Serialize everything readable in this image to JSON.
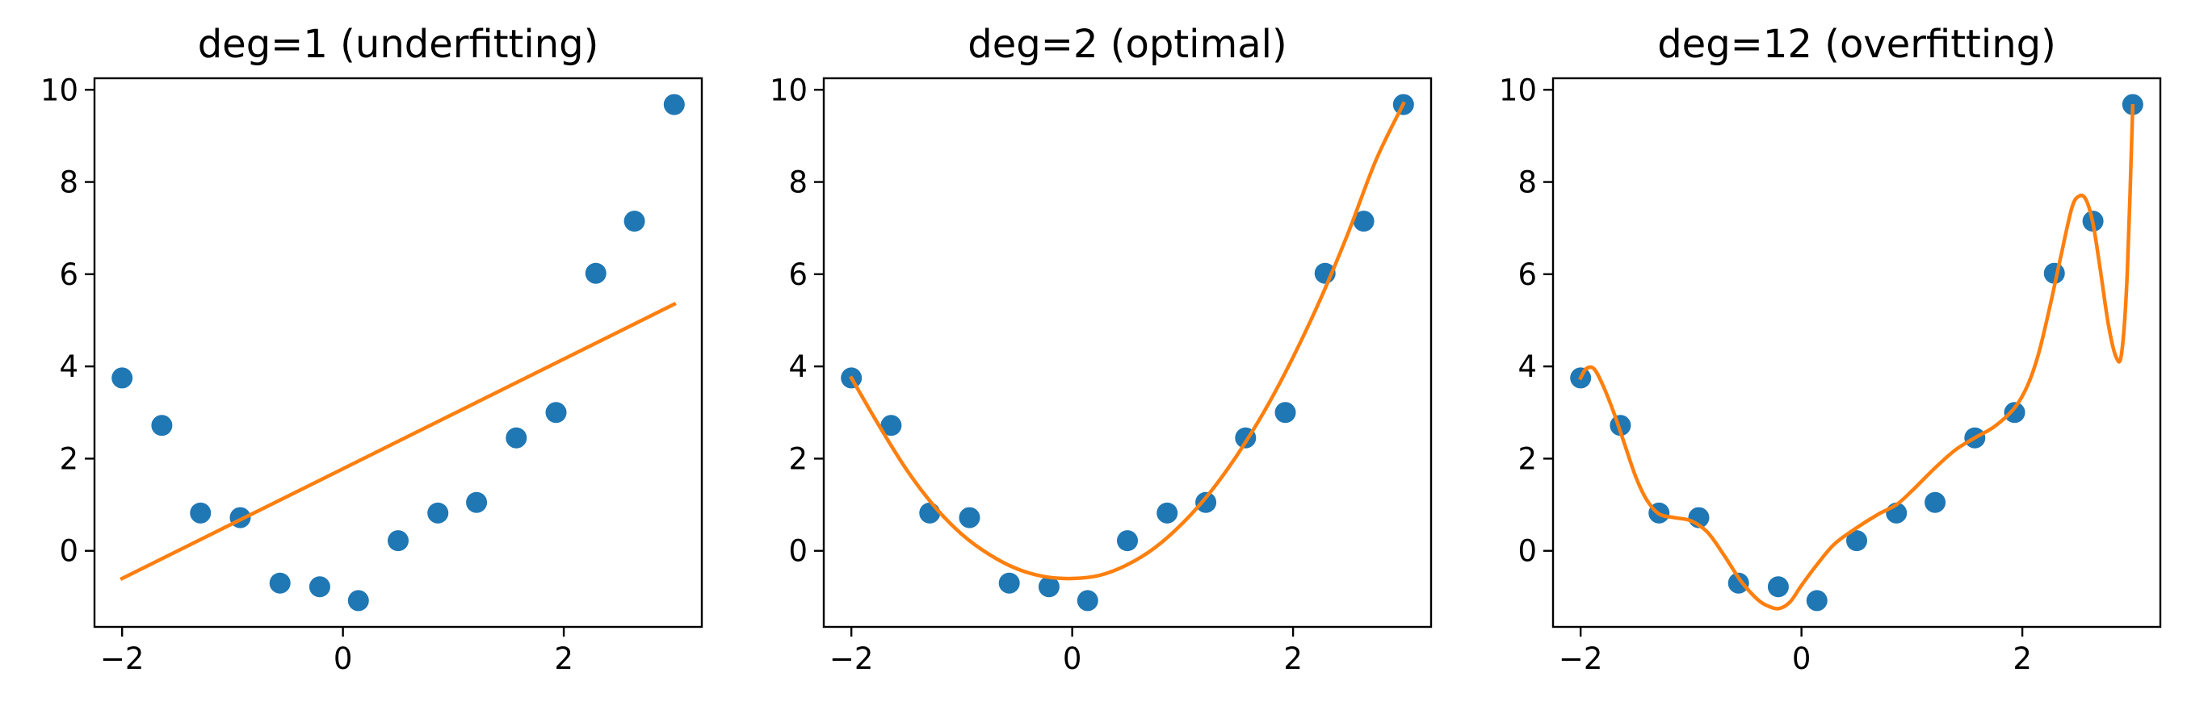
{
  "chart_data": [
    {
      "type": "scatter",
      "title": "deg=1 (underfitting)",
      "xlabel": "",
      "ylabel": "",
      "xlim": [
        -2.25,
        3.25
      ],
      "ylim": [
        -1.65,
        10.25
      ],
      "xticks": [
        -2,
        0,
        2
      ],
      "xtick_labels": [
        "−2",
        "0",
        "2"
      ],
      "yticks": [
        0,
        2,
        4,
        6,
        8,
        10
      ],
      "ytick_labels": [
        "0",
        "2",
        "4",
        "6",
        "8",
        "10"
      ],
      "grid": false,
      "series": [
        {
          "kind": "points",
          "color": "#1f77b4",
          "x": [
            -2.0,
            -1.64,
            -1.29,
            -0.93,
            -0.57,
            -0.21,
            0.14,
            0.5,
            0.86,
            1.21,
            1.57,
            1.93,
            2.29,
            2.64,
            3.0
          ],
          "y": [
            3.75,
            2.72,
            0.82,
            0.72,
            -0.7,
            -0.78,
            -1.08,
            0.22,
            0.82,
            1.05,
            2.45,
            3.0,
            6.02,
            7.15,
            9.68
          ]
        },
        {
          "kind": "fit",
          "degree": 1,
          "color": "#ff7f0e",
          "x_range": [
            -2.0,
            3.0
          ],
          "y_at_x_min": -0.6,
          "y_at_x_max": 5.35
        }
      ]
    },
    {
      "type": "scatter",
      "title": "deg=2 (optimal)",
      "xlabel": "",
      "ylabel": "",
      "xlim": [
        -2.25,
        3.25
      ],
      "ylim": [
        -1.65,
        10.25
      ],
      "xticks": [
        -2,
        0,
        2
      ],
      "xtick_labels": [
        "−2",
        "0",
        "2"
      ],
      "yticks": [
        0,
        2,
        4,
        6,
        8,
        10
      ],
      "ytick_labels": [
        "0",
        "2",
        "4",
        "6",
        "8",
        "10"
      ],
      "grid": false,
      "series": [
        {
          "kind": "points",
          "color": "#1f77b4",
          "x": [
            -2.0,
            -1.64,
            -1.29,
            -0.93,
            -0.57,
            -0.21,
            0.14,
            0.5,
            0.86,
            1.21,
            1.57,
            1.93,
            2.29,
            2.64,
            3.0
          ],
          "y": [
            3.75,
            2.72,
            0.82,
            0.72,
            -0.7,
            -0.78,
            -1.08,
            0.22,
            0.82,
            1.05,
            2.45,
            3.0,
            6.02,
            7.15,
            9.68
          ]
        },
        {
          "kind": "fit",
          "degree": 2,
          "color": "#ff7f0e",
          "x_range": [
            -2.0,
            3.0
          ],
          "fit_x": [
            -2.0,
            -1.75,
            -1.5,
            -1.25,
            -1.0,
            -0.75,
            -0.5,
            -0.25,
            0.0,
            0.25,
            0.5,
            0.75,
            1.0,
            1.25,
            1.5,
            1.75,
            2.0,
            2.25,
            2.5,
            2.75,
            3.0
          ],
          "fit_y": [
            3.75,
            2.72,
            1.76,
            0.97,
            0.36,
            -0.08,
            -0.39,
            -0.56,
            -0.6,
            -0.53,
            -0.3,
            0.07,
            0.6,
            1.27,
            2.1,
            3.07,
            4.2,
            5.47,
            6.9,
            8.47,
            9.7
          ]
        }
      ]
    },
    {
      "type": "scatter",
      "title": "deg=12 (overfitting)",
      "xlabel": "",
      "ylabel": "",
      "xlim": [
        -2.25,
        3.25
      ],
      "ylim": [
        -1.65,
        10.25
      ],
      "xticks": [
        -2,
        0,
        2
      ],
      "xtick_labels": [
        "−2",
        "0",
        "2"
      ],
      "yticks": [
        0,
        2,
        4,
        6,
        8,
        10
      ],
      "ytick_labels": [
        "0",
        "2",
        "4",
        "6",
        "8",
        "10"
      ],
      "grid": false,
      "series": [
        {
          "kind": "points",
          "color": "#1f77b4",
          "x": [
            -2.0,
            -1.64,
            -1.29,
            -0.93,
            -0.57,
            -0.21,
            0.14,
            0.5,
            0.86,
            1.21,
            1.57,
            1.93,
            2.29,
            2.64,
            3.0
          ],
          "y": [
            3.75,
            2.72,
            0.82,
            0.72,
            -0.7,
            -0.78,
            -1.08,
            0.22,
            0.82,
            1.05,
            2.45,
            3.0,
            6.02,
            7.15,
            9.68
          ]
        },
        {
          "kind": "fit",
          "degree": 12,
          "color": "#ff7f0e",
          "x_range": [
            -2.0,
            3.0
          ],
          "fit_x": [
            -2.0,
            -1.95,
            -1.88,
            -1.8,
            -1.7,
            -1.6,
            -1.5,
            -1.4,
            -1.29,
            -1.15,
            -1.0,
            -0.85,
            -0.7,
            -0.55,
            -0.4,
            -0.3,
            -0.2,
            -0.1,
            0.0,
            0.14,
            0.3,
            0.5,
            0.7,
            0.86,
            1.0,
            1.21,
            1.4,
            1.57,
            1.75,
            1.93,
            2.05,
            2.15,
            2.25,
            2.35,
            2.45,
            2.52,
            2.58,
            2.64,
            2.7,
            2.78,
            2.85,
            2.9,
            2.95,
            3.0
          ],
          "fit_y": [
            3.75,
            3.95,
            3.95,
            3.6,
            3.0,
            2.3,
            1.6,
            1.1,
            0.8,
            0.72,
            0.65,
            0.4,
            -0.1,
            -0.65,
            -1.05,
            -1.2,
            -1.25,
            -1.1,
            -0.75,
            -0.3,
            0.15,
            0.5,
            0.8,
            1.0,
            1.3,
            1.8,
            2.2,
            2.45,
            2.7,
            3.1,
            3.6,
            4.3,
            5.3,
            6.4,
            7.45,
            7.7,
            7.6,
            7.1,
            6.2,
            4.9,
            4.2,
            4.3,
            6.0,
            9.65
          ]
        }
      ]
    }
  ]
}
